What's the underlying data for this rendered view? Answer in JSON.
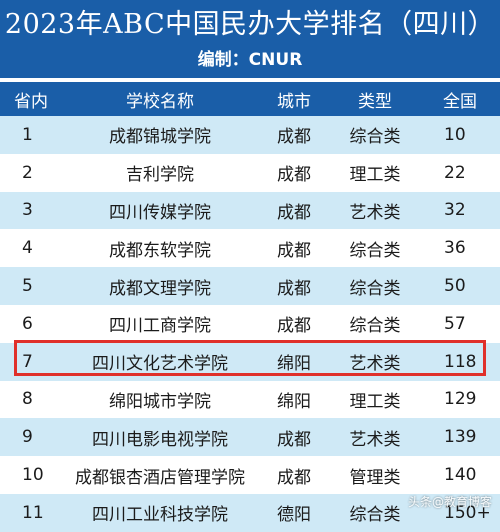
{
  "header": {
    "title": "2023年ABC中国民办大学排名（四川）",
    "subtitle": "编制：CNUR"
  },
  "colors": {
    "header_bg": "#1a5ea8",
    "row_alt_bg": "#cfe9f6",
    "highlight_border": "#e0302a"
  },
  "table": {
    "columns": [
      "省内",
      "学校名称",
      "城市",
      "类型",
      "全国"
    ],
    "rows": [
      {
        "rank": "1",
        "name": "成都锦城学院",
        "city": "成都",
        "type": "综合类",
        "national": "10"
      },
      {
        "rank": "2",
        "name": "吉利学院",
        "city": "成都",
        "type": "理工类",
        "national": "22"
      },
      {
        "rank": "3",
        "name": "四川传媒学院",
        "city": "成都",
        "type": "艺术类",
        "national": "32"
      },
      {
        "rank": "4",
        "name": "成都东软学院",
        "city": "成都",
        "type": "综合类",
        "national": "36"
      },
      {
        "rank": "5",
        "name": "成都文理学院",
        "city": "成都",
        "type": "综合类",
        "national": "50"
      },
      {
        "rank": "6",
        "name": "四川工商学院",
        "city": "成都",
        "type": "综合类",
        "national": "57"
      },
      {
        "rank": "7",
        "name": "四川文化艺术学院",
        "city": "绵阳",
        "type": "艺术类",
        "national": "118"
      },
      {
        "rank": "8",
        "name": "绵阳城市学院",
        "city": "绵阳",
        "type": "理工类",
        "national": "129"
      },
      {
        "rank": "9",
        "name": "四川电影电视学院",
        "city": "成都",
        "type": "艺术类",
        "national": "139"
      },
      {
        "rank": "10",
        "name": "成都银杏酒店管理学院",
        "city": "成都",
        "type": "管理类",
        "national": "140"
      },
      {
        "rank": "11",
        "name": "四川工业科技学院",
        "city": "德阳",
        "type": "综合类",
        "national": "150+"
      }
    ],
    "highlighted_rank": "7"
  },
  "watermark": "头条@教育博客"
}
